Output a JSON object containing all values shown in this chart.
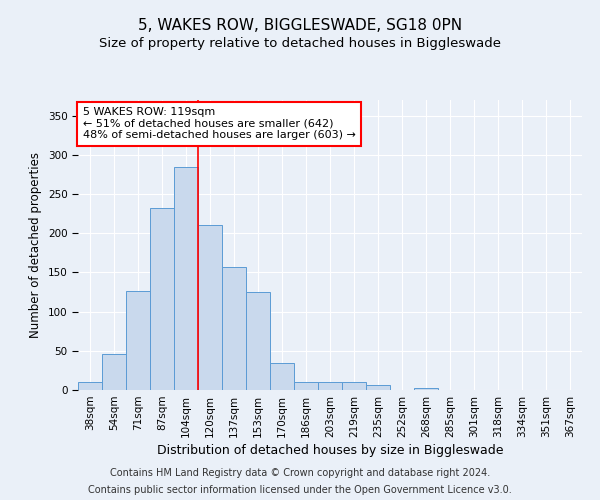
{
  "title_line1": "5, WAKES ROW, BIGGLESWADE, SG18 0PN",
  "title_line2": "Size of property relative to detached houses in Biggleswade",
  "xlabel": "Distribution of detached houses by size in Biggleswade",
  "ylabel": "Number of detached properties",
  "categories": [
    "38sqm",
    "54sqm",
    "71sqm",
    "87sqm",
    "104sqm",
    "120sqm",
    "137sqm",
    "153sqm",
    "170sqm",
    "186sqm",
    "203sqm",
    "219sqm",
    "235sqm",
    "252sqm",
    "268sqm",
    "285sqm",
    "301sqm",
    "318sqm",
    "334sqm",
    "351sqm",
    "367sqm"
  ],
  "values": [
    10,
    46,
    126,
    232,
    284,
    210,
    157,
    125,
    35,
    10,
    10,
    10,
    7,
    0,
    2,
    0,
    0,
    0,
    0,
    0,
    0
  ],
  "bar_color": "#c9d9ed",
  "bar_edge_color": "#5b9bd5",
  "vline_x": 4.5,
  "vline_color": "red",
  "annotation_text": "5 WAKES ROW: 119sqm\n← 51% of detached houses are smaller (642)\n48% of semi-detached houses are larger (603) →",
  "annotation_box_color": "white",
  "annotation_box_edge_color": "red",
  "ylim": [
    0,
    370
  ],
  "yticks": [
    0,
    50,
    100,
    150,
    200,
    250,
    300,
    350
  ],
  "footnote1": "Contains HM Land Registry data © Crown copyright and database right 2024.",
  "footnote2": "Contains public sector information licensed under the Open Government Licence v3.0.",
  "bg_color": "#eaf0f8",
  "plot_bg_color": "#eaf0f8",
  "grid_color": "white",
  "title_fontsize": 11,
  "subtitle_fontsize": 9.5,
  "xlabel_fontsize": 9,
  "ylabel_fontsize": 8.5,
  "tick_fontsize": 7.5,
  "annotation_fontsize": 8,
  "footnote_fontsize": 7
}
